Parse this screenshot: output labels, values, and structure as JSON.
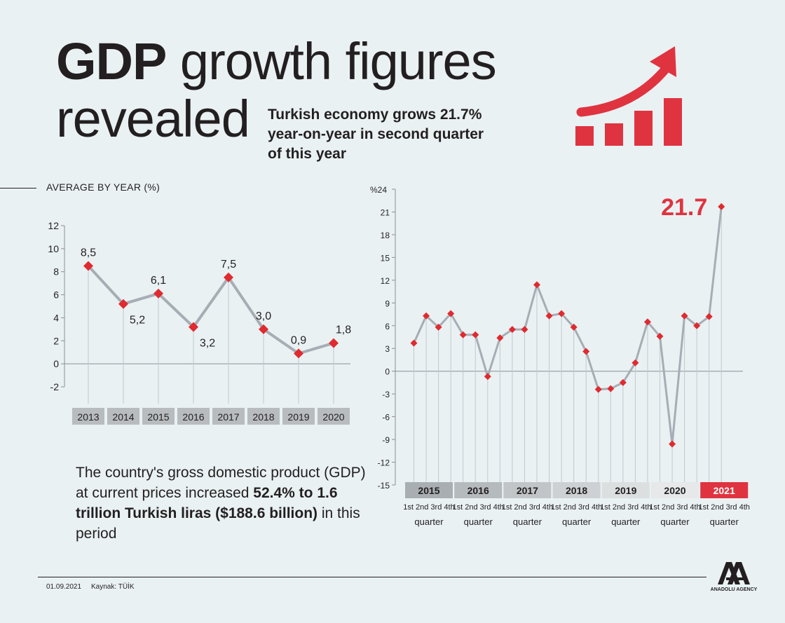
{
  "title": {
    "bold": "GDP",
    "rest": " growth figures",
    "line2": "revealed"
  },
  "subtitle": {
    "line1": "Turkish economy grows 21.7%",
    "line2": "year-on-year in second quarter",
    "line3": "of this year"
  },
  "left_section_label": "AVERAGE BY YEAR (%)",
  "description": {
    "part1": "The country's gross domestic product (GDP) at current prices increased ",
    "bold": "52.4% to 1.6 trillion Turkish liras ($188.6 billion)",
    "part2": " in this period"
  },
  "footer": {
    "date": "01.09.2021",
    "source": "Kaynak: TÜİK"
  },
  "agency": {
    "name": "ANADOLU AGENCY",
    "logo_letters": "AA"
  },
  "colors": {
    "accent": "#e03340",
    "line": "#a7adb4",
    "marker": "#e02a2f",
    "year_box": "#b8bcbf",
    "text": "#231f20"
  },
  "icon": "rising-bar-chart-with-arrow-icon",
  "chart_data": [
    {
      "type": "line",
      "title": "AVERAGE BY YEAR (%)",
      "categories": [
        "2013",
        "2014",
        "2015",
        "2016",
        "2017",
        "2018",
        "2019",
        "2020"
      ],
      "values": [
        8.5,
        5.2,
        6.1,
        3.2,
        7.5,
        3.0,
        0.9,
        1.8
      ],
      "value_labels": [
        "8,5",
        "5,2",
        "6,1",
        "3,2",
        "7,5",
        "3,0",
        "0,9",
        "1,8"
      ],
      "yticks": [
        "12",
        "10",
        "8",
        "6",
        "4",
        "2",
        "0",
        "-2"
      ],
      "ylim": [
        -2,
        12
      ],
      "grid": false
    },
    {
      "type": "line",
      "unit_label": "%24",
      "years": [
        "2015",
        "2016",
        "2017",
        "2018",
        "2019",
        "2020",
        "2021"
      ],
      "quarter_labels": [
        "1st",
        "2nd",
        "3rd",
        "4th"
      ],
      "quarter_word": "quarter",
      "values": [
        3.7,
        7.3,
        5.8,
        7.6,
        4.8,
        4.8,
        -0.7,
        4.4,
        5.5,
        5.5,
        11.4,
        7.3,
        7.6,
        5.8,
        2.6,
        -2.4,
        -2.3,
        -1.5,
        1.1,
        6.5,
        4.6,
        -9.6,
        7.3,
        6.0,
        7.2,
        21.7
      ],
      "highlight_label": "21.7",
      "yticks": [
        "21",
        "18",
        "15",
        "12",
        "9",
        "6",
        "3",
        "0",
        "-3",
        "-6",
        "-9",
        "-12",
        "-15"
      ],
      "ylim": [
        -15,
        24
      ],
      "grid": false
    }
  ]
}
